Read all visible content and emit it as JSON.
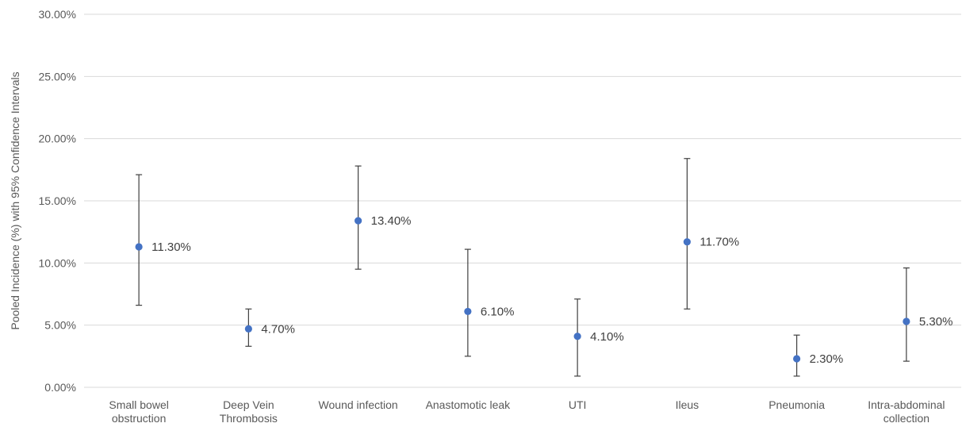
{
  "chart_data": {
    "type": "scatter",
    "title": "",
    "xlabel": "",
    "ylabel": "Pooled Incidence (%) with 95% Confidence Intervals",
    "ylim": [
      0,
      30
    ],
    "yticks": [
      "0.00%",
      "5.00%",
      "10.00%",
      "15.00%",
      "20.00%",
      "25.00%",
      "30.00%"
    ],
    "ytick_values": [
      0,
      5,
      10,
      15,
      20,
      25,
      30
    ],
    "grid": true,
    "legend": "none",
    "marker_color": "#4472C4",
    "categories": [
      "Small bowel obstruction",
      "Deep Vein Thrombosis",
      "Wound infection",
      "Anastomotic leak",
      "UTI",
      "Ileus",
      "Pneumonia",
      "Intra-abdominal collection"
    ],
    "category_lines": [
      [
        "Small bowel",
        "obstruction"
      ],
      [
        "Deep Vein",
        "Thrombosis"
      ],
      [
        "Wound infection"
      ],
      [
        "Anastomotic leak"
      ],
      [
        "UTI"
      ],
      [
        "Ileus"
      ],
      [
        "Pneumonia"
      ],
      [
        "Intra-abdominal",
        "collection"
      ]
    ],
    "values": [
      11.3,
      4.7,
      13.4,
      6.1,
      4.1,
      11.7,
      2.3,
      5.3
    ],
    "ci_lower": [
      6.6,
      3.3,
      9.5,
      2.5,
      0.9,
      6.3,
      0.9,
      2.1
    ],
    "ci_upper": [
      17.1,
      6.3,
      17.8,
      11.1,
      7.1,
      18.4,
      4.2,
      9.6
    ],
    "data_labels": [
      "11.30%",
      "4.70%",
      "13.40%",
      "6.10%",
      "4.10%",
      "11.70%",
      "2.30%",
      "5.30%"
    ]
  }
}
